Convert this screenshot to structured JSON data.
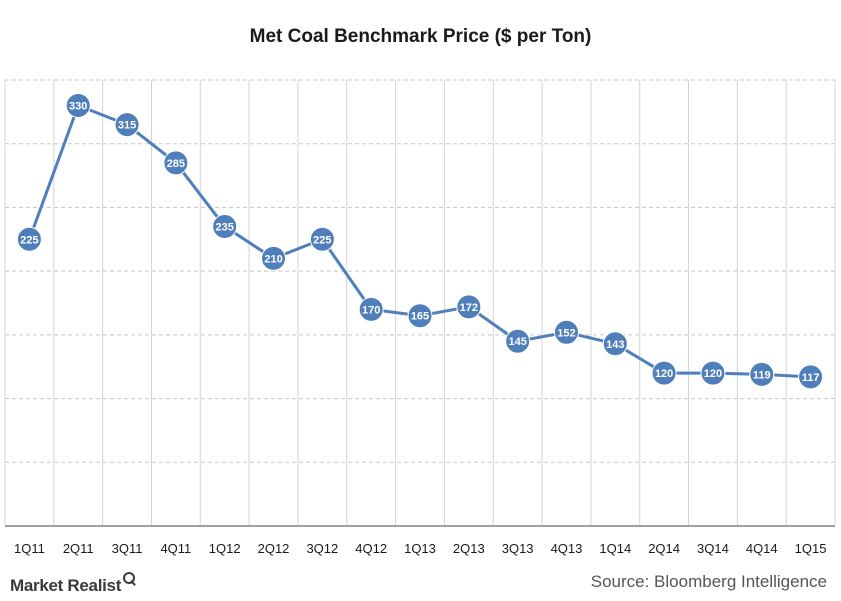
{
  "header": {
    "title": "Met Coal Benchmark Price ($ per Ton)"
  },
  "footer": {
    "brand": "Market Realist",
    "source": "Source: Bloomberg Intelligence"
  },
  "colors": {
    "line": "#4F7FBA",
    "marker": "#4F7FBA",
    "grid": "#c8c8c8",
    "axis": "#808080"
  },
  "chart_data": {
    "type": "line",
    "title": "Met Coal Benchmark Price ($ per Ton)",
    "xlabel": "",
    "ylabel": "",
    "categories": [
      "1Q11",
      "2Q11",
      "3Q11",
      "4Q11",
      "1Q12",
      "2Q12",
      "3Q12",
      "4Q12",
      "1Q13",
      "2Q13",
      "3Q13",
      "4Q13",
      "1Q14",
      "2Q14",
      "3Q14",
      "4Q14",
      "1Q15"
    ],
    "series": [
      {
        "values": [
          225,
          330,
          315,
          285,
          235,
          210,
          225,
          170,
          165,
          172,
          145,
          152,
          143,
          120,
          120,
          119,
          117
        ]
      }
    ],
    "ylim": [
      0,
      350
    ],
    "grid": true,
    "legend": "none"
  }
}
